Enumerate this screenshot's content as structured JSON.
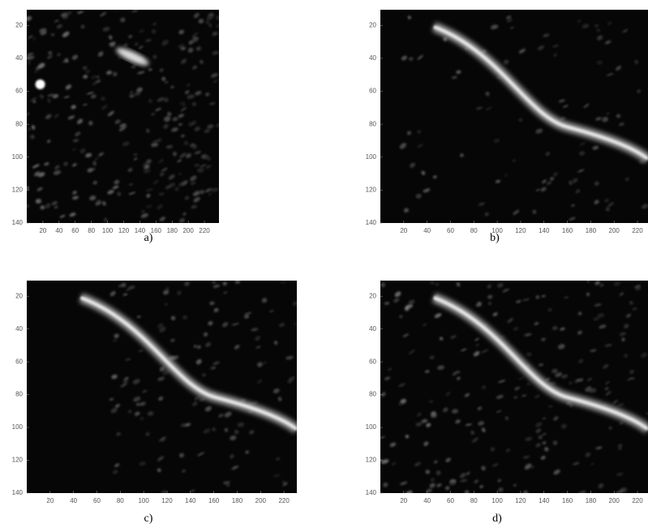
{
  "panels": [
    {
      "caption": "a)",
      "xlim": [
        0,
        238
      ],
      "ylim": [
        10.5,
        140
      ],
      "xticks": [
        20,
        40,
        60,
        80,
        100,
        120,
        140,
        160,
        180,
        200,
        220
      ],
      "yticks": [
        20,
        40,
        60,
        80,
        100,
        120,
        140
      ]
    },
    {
      "caption": "b)",
      "xlim": [
        0,
        229
      ],
      "ylim": [
        10.5,
        140
      ],
      "xticks": [
        20,
        40,
        60,
        80,
        100,
        120,
        140,
        160,
        180,
        200,
        220
      ],
      "yticks": [
        20,
        40,
        60,
        80,
        100,
        120,
        140
      ]
    },
    {
      "caption": "c)",
      "xlim": [
        0,
        231
      ],
      "ylim": [
        10.5,
        140
      ],
      "xticks": [
        20,
        40,
        60,
        80,
        100,
        120,
        140,
        160,
        180,
        200,
        220
      ],
      "yticks": [
        20,
        40,
        60,
        80,
        100,
        120,
        140
      ]
    },
    {
      "caption": "d)",
      "xlim": [
        0,
        229
      ],
      "ylim": [
        10.5,
        140
      ],
      "xticks": [
        20,
        40,
        60,
        80,
        100,
        120,
        140,
        160,
        180,
        200,
        220
      ],
      "yticks": [
        20,
        40,
        60,
        80,
        100,
        120,
        140
      ]
    }
  ]
}
